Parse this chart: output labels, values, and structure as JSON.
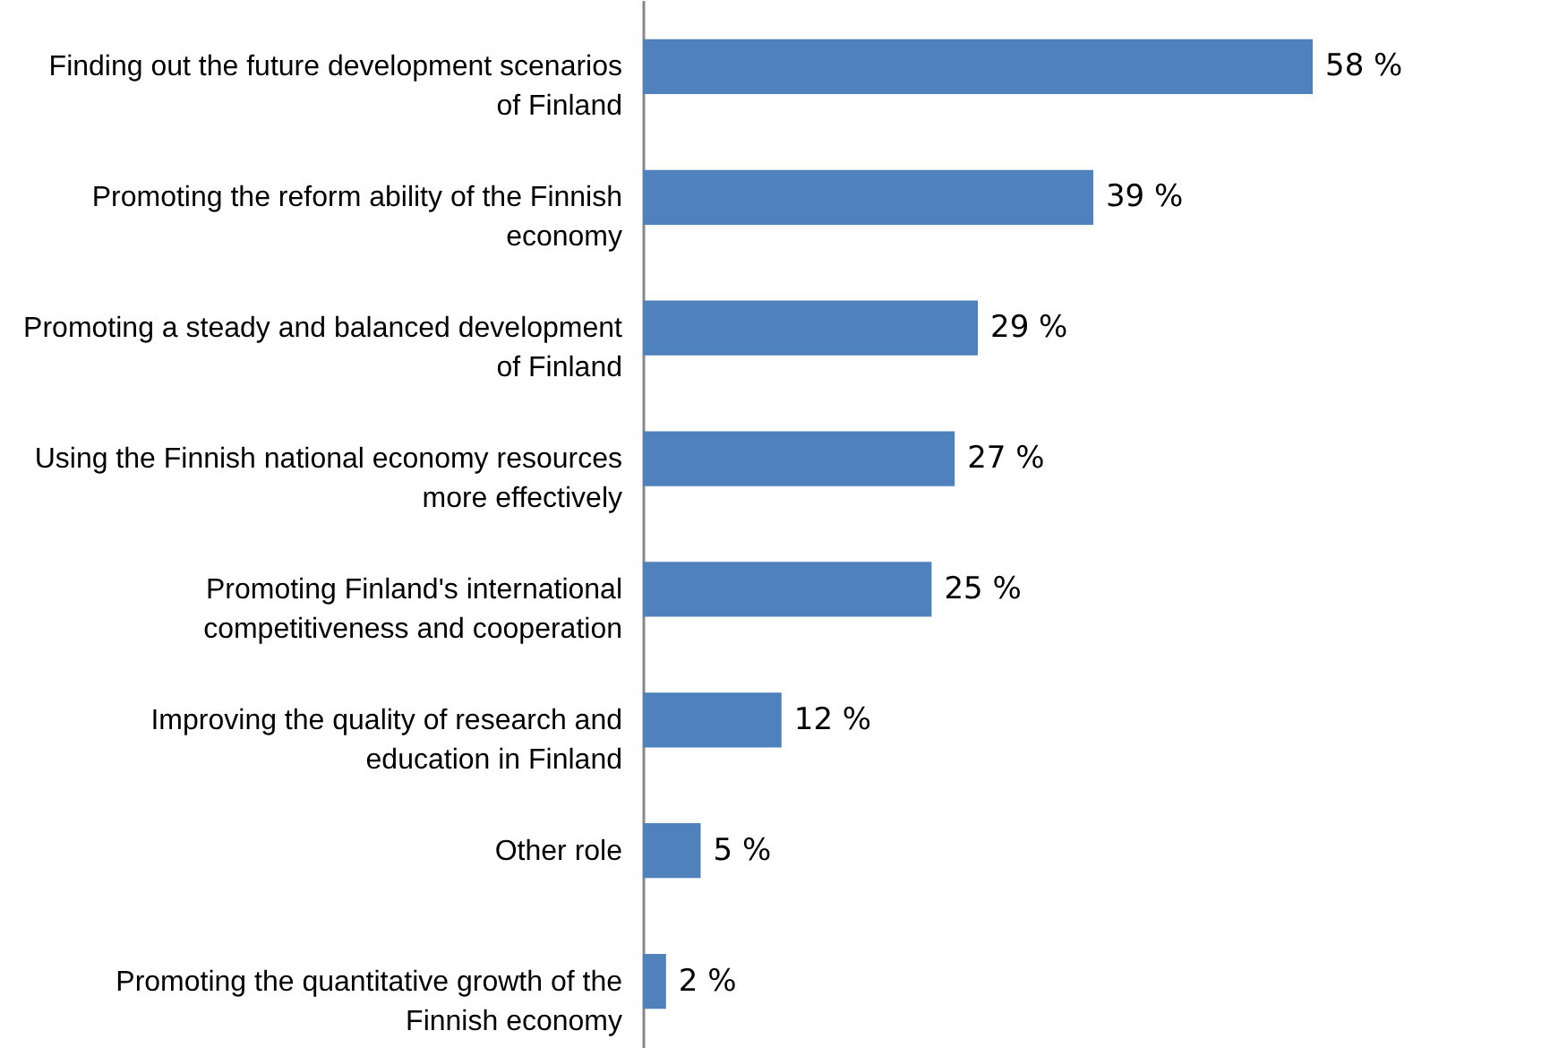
{
  "chart_data": {
    "type": "bar",
    "orientation": "horizontal",
    "categories": [
      "Finding out the future development scenarios of Finland",
      "Promoting the reform ability of the Finnish economy",
      "Promoting a steady and balanced development of Finland",
      "Using the Finnish national economy resources more effectively",
      "Promoting Finland's international competitiveness and cooperation",
      "Improving the quality of research and education in Finland",
      "Other role",
      "Promoting the quantitative growth of the Finnish economy"
    ],
    "values": [
      58,
      39,
      29,
      27,
      25,
      12,
      5,
      2
    ],
    "value_labels": [
      "58 %",
      "39 %",
      "29 %",
      "27 %",
      "25 %",
      "12 %",
      "5 %",
      "2 %"
    ],
    "color": "#4f81bd"
  }
}
